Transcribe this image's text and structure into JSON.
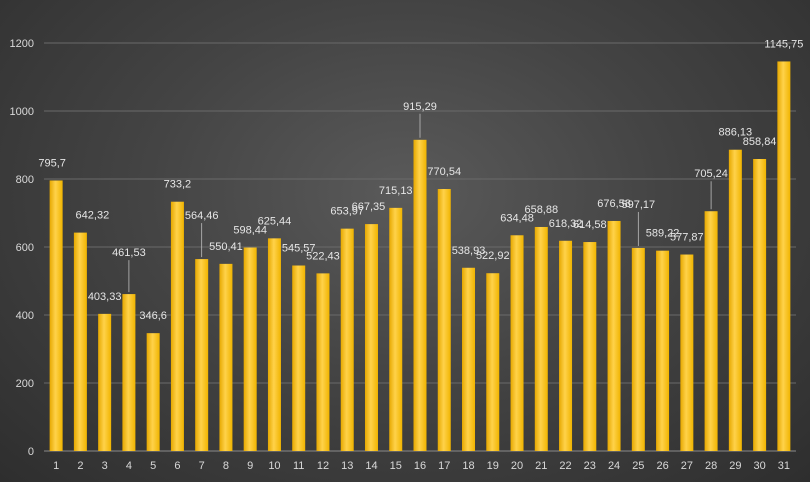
{
  "chart_data": {
    "type": "bar",
    "title": "",
    "xlabel": "",
    "ylabel": "",
    "ylim": [
      0,
      1200
    ],
    "yticks": [
      0,
      200,
      400,
      600,
      800,
      1000,
      1200
    ],
    "grid": true,
    "legend": "none",
    "bar_color": "#ffc000",
    "categories": [
      "1",
      "2",
      "3",
      "4",
      "5",
      "6",
      "7",
      "8",
      "9",
      "10",
      "11",
      "12",
      "13",
      "14",
      "15",
      "16",
      "17",
      "18",
      "19",
      "20",
      "21",
      "22",
      "23",
      "24",
      "25",
      "26",
      "27",
      "28",
      "29",
      "30",
      "31"
    ],
    "values": [
      795.7,
      642.32,
      403.33,
      461.53,
      346.6,
      733.2,
      564.46,
      550.41,
      598.44,
      625.44,
      545.57,
      522.43,
      653.97,
      667.35,
      715.13,
      915.29,
      770.54,
      538.93,
      522.92,
      634.48,
      658.88,
      618.32,
      614.58,
      676.58,
      597.17,
      589.22,
      577.87,
      705.24,
      886.13,
      858.84,
      1145.75
    ],
    "data_labels": [
      "795,7",
      "642,32",
      "403,33",
      "461,53",
      "346,6",
      "733,2",
      "564,46",
      "550,41",
      "598,44",
      "625,44",
      "545,57",
      "522,43",
      "653,97",
      "667,35",
      "715,13",
      "915,29",
      "770,54",
      "538,93",
      "522,92",
      "634,48",
      "658,88",
      "618,32",
      "614,58",
      "676,58",
      "597,17",
      "589,22",
      "577,87",
      "705,24",
      "886,13",
      "858,84",
      "1145,75"
    ]
  }
}
